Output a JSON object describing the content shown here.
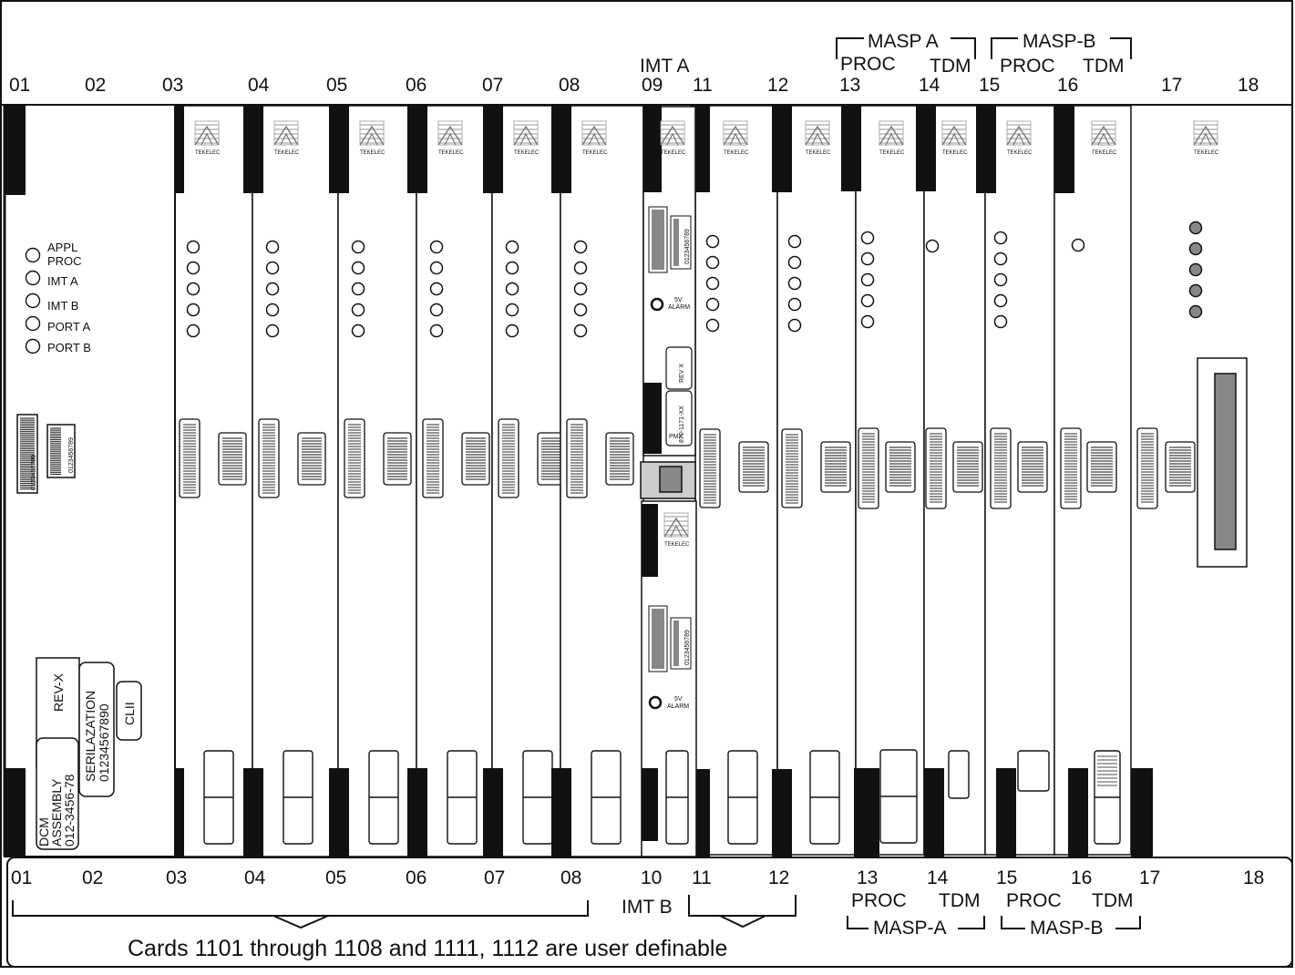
{
  "top_slot_numbers": [
    "01",
    "02",
    "03",
    "04",
    "05",
    "06",
    "07",
    "08",
    "09",
    "11",
    "12",
    "13",
    "14",
    "15",
    "16",
    "17",
    "18"
  ],
  "bottom_slot_numbers": [
    "01",
    "02",
    "03",
    "04",
    "05",
    "06",
    "07",
    "08",
    "10",
    "11",
    "12",
    "13",
    "14",
    "15",
    "16",
    "17",
    "18"
  ],
  "top_labels": {
    "imt_a": "IMT A",
    "masp_a": "MASP A",
    "masp_b": "MASP-B",
    "proc": "PROC",
    "tdm": "TDM"
  },
  "bottom_labels": {
    "imt_b": "IMT B",
    "masp_a": "MASP-A",
    "masp_b": "MASP-B",
    "proc": "PROC",
    "tdm": "TDM"
  },
  "caption": "Cards 1101 through 1108  and 1111, 1112 are user definable",
  "vendor_logo_text": "TEKELEC",
  "dcm_card": {
    "leds": [
      "APPL",
      "PROC",
      "IMT A",
      "IMT B",
      "PORT A",
      "PORT B"
    ],
    "rev_label": "REV-X",
    "assembly_lines": [
      "DCM",
      "ASSEMBLY",
      "012-3456-78"
    ],
    "serial_lines": [
      "SERILAZATION",
      "01234567890"
    ],
    "clii_label": "CLII",
    "barcode_a": "0123456789",
    "barcode_b": "0123456789"
  },
  "hmux": {
    "alarm_num": "5V",
    "alarm_word": "ALARM",
    "pmx": "PMX",
    "part_no": "870-1171-XX",
    "rev": "REV X",
    "barcode_a": "0123456789",
    "barcode_b": "0123456789"
  }
}
